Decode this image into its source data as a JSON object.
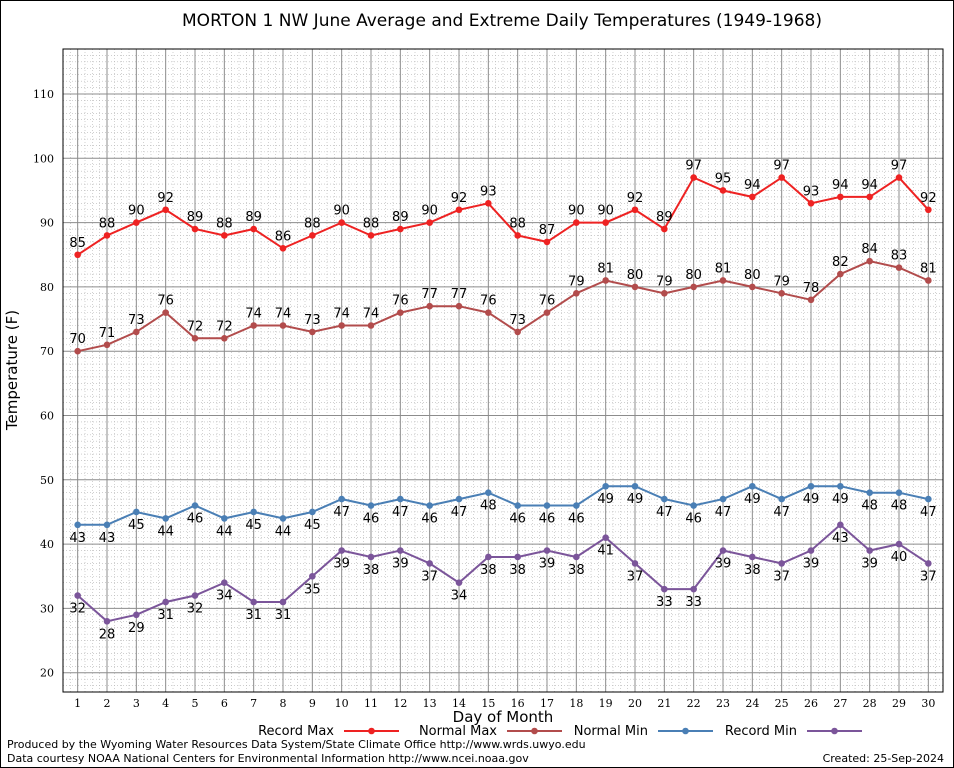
{
  "chart_data": {
    "type": "line",
    "title": "MORTON 1 NW June Average and Extreme Daily Temperatures (1949-1968)",
    "xlabel": "Day of Month",
    "ylabel": "Temperature (F)",
    "xlim": [
      0.5,
      30.5
    ],
    "ylim": [
      17,
      117
    ],
    "xticks": [
      1,
      2,
      3,
      4,
      5,
      6,
      7,
      8,
      9,
      10,
      11,
      12,
      13,
      14,
      15,
      16,
      17,
      18,
      19,
      20,
      21,
      22,
      23,
      24,
      25,
      26,
      27,
      28,
      29,
      30
    ],
    "yticks": [
      20,
      30,
      40,
      50,
      60,
      70,
      80,
      90,
      100,
      110
    ],
    "grid": true,
    "legend_position": "bottom",
    "series": [
      {
        "name": "Record Max",
        "color": "#ee2222",
        "label_position": "above",
        "values": [
          85,
          88,
          90,
          92,
          89,
          88,
          89,
          86,
          88,
          90,
          88,
          89,
          90,
          92,
          93,
          88,
          87,
          90,
          90,
          92,
          89,
          97,
          95,
          94,
          97,
          93,
          94,
          94,
          97,
          92
        ]
      },
      {
        "name": "Normal Max",
        "color": "#b24c4c",
        "label_position": "above",
        "values": [
          70,
          71,
          73,
          76,
          72,
          72,
          74,
          74,
          73,
          74,
          74,
          76,
          77,
          77,
          76,
          73,
          76,
          79,
          81,
          80,
          79,
          80,
          81,
          80,
          79,
          78,
          82,
          84,
          83,
          81
        ]
      },
      {
        "name": "Normal Min",
        "color": "#4a7fb5",
        "label_position": "below",
        "values": [
          43,
          43,
          45,
          44,
          46,
          44,
          45,
          44,
          45,
          47,
          46,
          47,
          46,
          47,
          48,
          46,
          46,
          46,
          49,
          49,
          47,
          46,
          47,
          49,
          47,
          49,
          49,
          48,
          48,
          47
        ]
      },
      {
        "name": "Record Min",
        "color": "#7b559a",
        "label_position": "below",
        "values": [
          32,
          28,
          29,
          31,
          32,
          34,
          31,
          31,
          35,
          39,
          38,
          39,
          37,
          34,
          38,
          38,
          39,
          38,
          41,
          37,
          33,
          33,
          39,
          38,
          37,
          39,
          43,
          39,
          40,
          37
        ]
      }
    ]
  },
  "credits": {
    "line1": "Produced by the Wyoming Water Resources Data System/State Climate Office http://www.wrds.uwyo.edu",
    "line2": "Data courtesy NOAA National Centers for Environmental Information http://www.ncei.noaa.gov",
    "created": "Created:  25-Sep-2024"
  }
}
